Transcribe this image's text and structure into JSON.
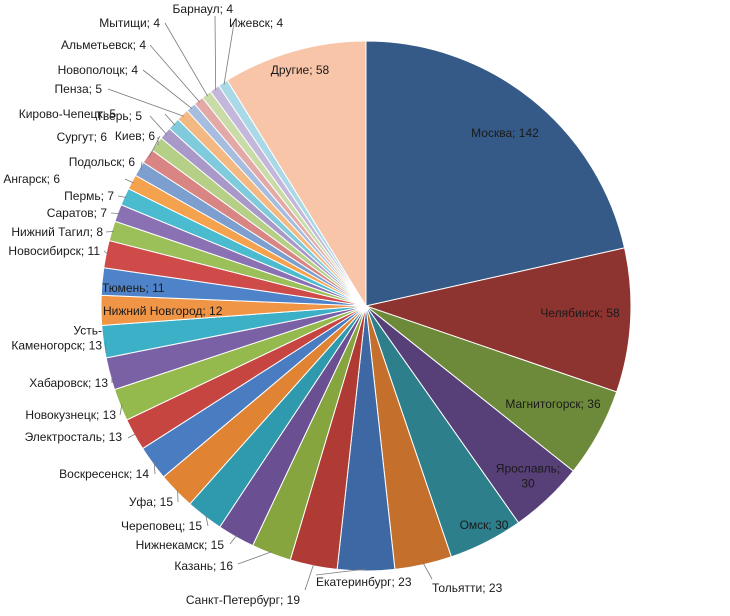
{
  "chart_data": {
    "type": "pie",
    "title": "",
    "start_angle_deg": 0,
    "direction": "clockwise",
    "slices": [
      {
        "label": "Москва; 142",
        "name": "Москва",
        "value": 142,
        "color": "#355a87"
      },
      {
        "label": "Челябинск; 58",
        "name": "Челябинск",
        "value": 58,
        "color": "#8e3430"
      },
      {
        "label": "Магнитогорск; 36",
        "name": "Магнитогорск",
        "value": 36,
        "color": "#6d8a3a"
      },
      {
        "label": "Ярославль;\n30",
        "name": "Ярославль",
        "value": 30,
        "color": "#573f78"
      },
      {
        "label": "Омск; 30",
        "name": "Омск",
        "value": 30,
        "color": "#2d7f8c"
      },
      {
        "label": "Тольятти; 23",
        "name": "Тольятти",
        "value": 23,
        "color": "#c46f2b"
      },
      {
        "label": "Екатеринбург; 23",
        "name": "Екатеринбург",
        "value": 23,
        "color": "#3e68a3"
      },
      {
        "label": "Санкт-Петербург; 19",
        "name": "Санкт-Петербург",
        "value": 19,
        "color": "#b03a34"
      },
      {
        "label": "Казань; 16",
        "name": "Казань",
        "value": 16,
        "color": "#86a53f"
      },
      {
        "label": "Нижнекамск; 15",
        "name": "Нижнекамск",
        "value": 15,
        "color": "#6a4f92"
      },
      {
        "label": "Череповец; 15",
        "name": "Череповец",
        "value": 15,
        "color": "#2f9aae"
      },
      {
        "label": "Уфа; 15",
        "name": "Уфа",
        "value": 15,
        "color": "#e08434"
      },
      {
        "label": "Воскресенск; 14",
        "name": "Воскресенск",
        "value": 14,
        "color": "#4a7cc1"
      },
      {
        "label": "Электросталь; 13",
        "name": "Электросталь",
        "value": 13,
        "color": "#c64541"
      },
      {
        "label": "Новокузнецк; 13",
        "name": "Новокузнецк",
        "value": 13,
        "color": "#94b94d"
      },
      {
        "label": "Хабаровск; 13",
        "name": "Хабаровск",
        "value": 13,
        "color": "#7a61a6"
      },
      {
        "label": "Усть-\nКаменогорск; 13",
        "name": "Усть-Каменогорск",
        "value": 13,
        "color": "#3bb0c6"
      },
      {
        "label": "Нижний Новгород; 12",
        "name": "Нижний Новгород",
        "value": 12,
        "color": "#f09446"
      },
      {
        "label": "Тюмень; 11",
        "name": "Тюмень",
        "value": 11,
        "color": "#4f83c9"
      },
      {
        "label": "Новосибирск; 11",
        "name": "Новосибирск",
        "value": 11,
        "color": "#cf4b4a"
      },
      {
        "label": "Нижний Тагил; 8",
        "name": "Нижний Тагил",
        "value": 8,
        "color": "#9bc05a"
      },
      {
        "label": "Саратов; 7",
        "name": "Саратов",
        "value": 7,
        "color": "#8a71b3"
      },
      {
        "label": "Пермь; 7",
        "name": "Пермь",
        "value": 7,
        "color": "#4bbbd0"
      },
      {
        "label": "Ангарск; 6",
        "name": "Ангарск",
        "value": 6,
        "color": "#f5a24f"
      },
      {
        "label": "Подольск; 6",
        "name": "Подольск",
        "value": 6,
        "color": "#7d9fd0"
      },
      {
        "label": "Киев; 6",
        "name": "Киев",
        "value": 6,
        "color": "#d98583"
      },
      {
        "label": "Сургут; 6",
        "name": "Сургут",
        "value": 6,
        "color": "#b5cf86"
      },
      {
        "label": "Тверь; 5",
        "name": "Тверь",
        "value": 5,
        "color": "#a999c9"
      },
      {
        "label": "Кирово-Чепецк; 5",
        "name": "Кирово-Чепецк",
        "value": 5,
        "color": "#7fcadb"
      },
      {
        "label": "Пенза; 5",
        "name": "Пенза",
        "value": 5,
        "color": "#f4b882"
      },
      {
        "label": "Новополоцк; 4",
        "name": "Новополоцк",
        "value": 4,
        "color": "#a7bde0"
      },
      {
        "label": "Альметьевск; 4",
        "name": "Альметьевск",
        "value": 4,
        "color": "#e3a9a7"
      },
      {
        "label": "Мытищи; 4",
        "name": "Мытищи",
        "value": 4,
        "color": "#c9dca7"
      },
      {
        "label": "Барнаул; 4",
        "name": "Барнаул",
        "value": 4,
        "color": "#c3b8dc"
      },
      {
        "label": "Ижевск; 4",
        "name": "Ижевск",
        "value": 4,
        "color": "#a9d9e6"
      },
      {
        "label": "Другие; 58",
        "name": "Другие",
        "value": 58,
        "color": "#f8c5a9"
      }
    ]
  }
}
